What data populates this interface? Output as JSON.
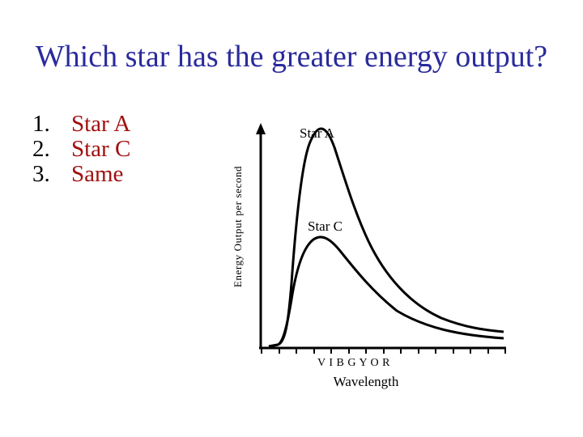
{
  "slide": {
    "title": "Which star has the greater energy output?",
    "options": [
      {
        "number": "1.",
        "text": "Star A"
      },
      {
        "number": "2.",
        "text": "Star C"
      },
      {
        "number": "3.",
        "text": "Same"
      }
    ]
  },
  "diagram": {
    "y_axis_label": "Energy Output per second",
    "x_axis_label": "Wavelength",
    "color_sequence": "V I B G Y O R",
    "curves": [
      {
        "label": "Star A",
        "relative_peak": 1.0
      },
      {
        "label": "Star C",
        "relative_peak": 0.48
      }
    ],
    "colors": {
      "title": "#2a2a9c",
      "answers": "#a01010",
      "lines": "#000000"
    }
  }
}
